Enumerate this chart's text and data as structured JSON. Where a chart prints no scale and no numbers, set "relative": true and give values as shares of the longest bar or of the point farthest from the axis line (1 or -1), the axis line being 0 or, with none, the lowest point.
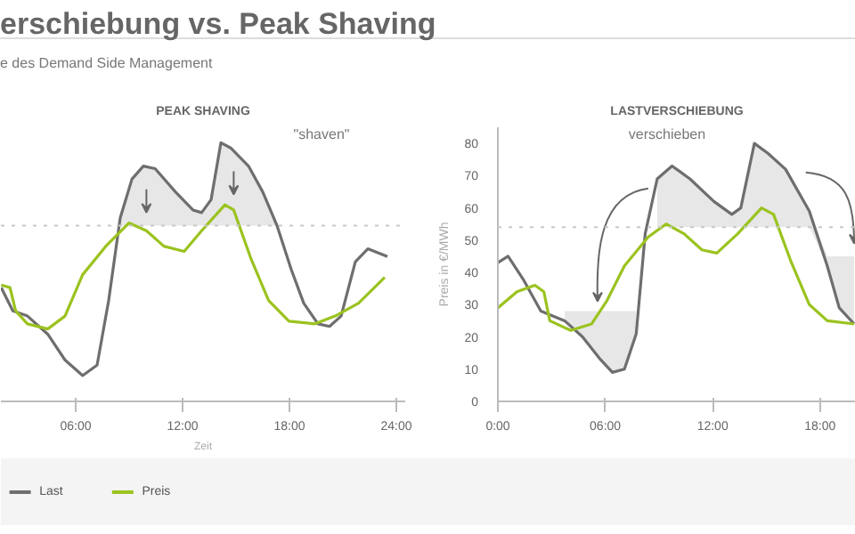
{
  "chart_data": [
    {
      "type": "line",
      "title": "PEAK SHAVING",
      "xlabel": "Zeit",
      "tick_labels": "x",
      "legend": "bottom",
      "grid": false,
      "marker": "none",
      "line_style": "solid",
      "annotations": [
        "erschiebung vs. Peak Shaving",
        "e des Demand Side Management",
        "\"shaven\""
      ],
      "relative": true,
      "xlim": [
        1.8,
        24.5
      ],
      "xticks": [
        {
          "value": 6,
          "label": "06:00"
        },
        {
          "value": 12,
          "label": "12:00"
        },
        {
          "value": 18,
          "label": "18:00"
        },
        {
          "value": 24,
          "label": "24:00"
        }
      ],
      "ref_lines": [
        {
          "axis": "y",
          "value": 0.68,
          "color": "#c8c8c8",
          "line_style": "dotted"
        }
      ],
      "series": [
        {
          "name": "Last",
          "color": "#6e6e6e",
          "x": [
            1.82,
            2.47,
            3.29,
            4.43,
            5.4,
            6.39,
            7.2,
            7.85,
            8.5,
            9.16,
            9.8,
            10.46,
            11.6,
            12.58,
            13.07,
            13.6,
            14.15,
            14.7,
            15.7,
            16.5,
            17.3,
            18.1,
            18.8,
            19.6,
            20.25,
            20.9,
            21.7,
            22.4,
            23.5
          ],
          "values": [
            0.44,
            0.35,
            0.33,
            0.26,
            0.16,
            0.1,
            0.14,
            0.39,
            0.71,
            0.86,
            0.91,
            0.9,
            0.81,
            0.74,
            0.73,
            0.78,
            1,
            0.98,
            0.91,
            0.81,
            0.68,
            0.51,
            0.38,
            0.3,
            0.29,
            0.33,
            0.54,
            0.59,
            0.56
          ],
          "lower": [
            null,
            null,
            null,
            null,
            null,
            null,
            null,
            null,
            0.68,
            0.68,
            0.68,
            0.68,
            0.68,
            0.68,
            0.68,
            0.68,
            0.68,
            0.68,
            0.68,
            0.68,
            0.68,
            null,
            null,
            null,
            null,
            null,
            null,
            null,
            null
          ],
          "upper": [
            null,
            null,
            null,
            null,
            null,
            null,
            null,
            null,
            0.71,
            0.86,
            0.91,
            0.9,
            0.81,
            0.74,
            0.73,
            0.78,
            1,
            0.98,
            0.91,
            0.81,
            0.68,
            null,
            null,
            null,
            null,
            null,
            null,
            null,
            null
          ]
        },
        {
          "name": "Preis",
          "color": "#9bc31f",
          "x": [
            1.82,
            2.31,
            2.63,
            3.29,
            4.43,
            5.4,
            6.39,
            7.69,
            8.99,
            9.97,
            10.95,
            12.09,
            13.07,
            14.38,
            14.87,
            15.85,
            16.83,
            17.97,
            19.43,
            20.57,
            21.88,
            23.35
          ],
          "values": [
            0.45,
            0.44,
            0.35,
            0.3,
            0.28,
            0.33,
            0.49,
            0.6,
            0.69,
            0.66,
            0.6,
            0.58,
            0.66,
            0.76,
            0.74,
            0.55,
            0.39,
            0.31,
            0.3,
            0.33,
            0.38,
            0.48
          ]
        }
      ]
    },
    {
      "type": "line",
      "title": "LASTVERSCHIEBUNG",
      "ylabel": "Preis in €/MWh",
      "grid": false,
      "marker": "none",
      "line_style": "solid",
      "annotations": [
        "verschieben"
      ],
      "xlim": [
        0,
        20
      ],
      "ylim": [
        0,
        85
      ],
      "xticks": [
        {
          "value": 0,
          "label": "0:00"
        },
        {
          "value": 6,
          "label": "06:00"
        },
        {
          "value": 12,
          "label": "12:00"
        },
        {
          "value": 18,
          "label": "18:00"
        }
      ],
      "yticks": [
        0,
        10,
        20,
        30,
        40,
        50,
        60,
        70,
        80
      ],
      "ref_lines": [
        {
          "axis": "y",
          "value": 54,
          "color": "#c8c8c8",
          "line_style": "dotted"
        }
      ],
      "series": [
        {
          "color": "#6e6e6e",
          "x": [
            0,
            0.57,
            1.4,
            2.4,
            3.73,
            4.73,
            5.73,
            6.4,
            7.07,
            7.73,
            8.23,
            8.9,
            9.73,
            10.73,
            12.07,
            13.07,
            13.57,
            14.33,
            15.07,
            16.07,
            17.4,
            18.4,
            19.07,
            19.9
          ],
          "values": [
            43,
            45,
            38,
            28,
            25,
            20,
            13,
            9,
            10,
            21,
            52,
            69,
            73,
            69,
            62,
            58,
            60,
            80,
            77,
            72,
            59,
            42,
            29,
            24
          ],
          "lower": [
            null,
            null,
            null,
            null,
            25,
            20,
            13,
            9,
            10,
            21,
            null,
            54,
            54,
            54,
            54,
            54,
            54,
            54,
            54,
            54,
            54,
            42,
            29,
            24
          ],
          "upper": [
            null,
            null,
            null,
            null,
            28,
            28,
            28,
            28,
            28,
            28,
            null,
            69,
            73,
            69,
            62,
            58,
            60,
            80,
            77,
            72,
            59,
            45,
            45,
            45
          ]
        },
        {
          "color": "#9bc31f",
          "x": [
            0,
            1.07,
            2.07,
            2.57,
            2.9,
            4.07,
            5.23,
            6.07,
            7.07,
            8.4,
            9.4,
            10.4,
            11.4,
            12.23,
            13.4,
            14.73,
            15.4,
            16.4,
            17.4,
            18.4,
            19.9
          ],
          "values": [
            29,
            34,
            36,
            34,
            25,
            22,
            24,
            31,
            42,
            51,
            55,
            52,
            47,
            46,
            52,
            60,
            58,
            43,
            30,
            25,
            24
          ]
        }
      ]
    }
  ]
}
